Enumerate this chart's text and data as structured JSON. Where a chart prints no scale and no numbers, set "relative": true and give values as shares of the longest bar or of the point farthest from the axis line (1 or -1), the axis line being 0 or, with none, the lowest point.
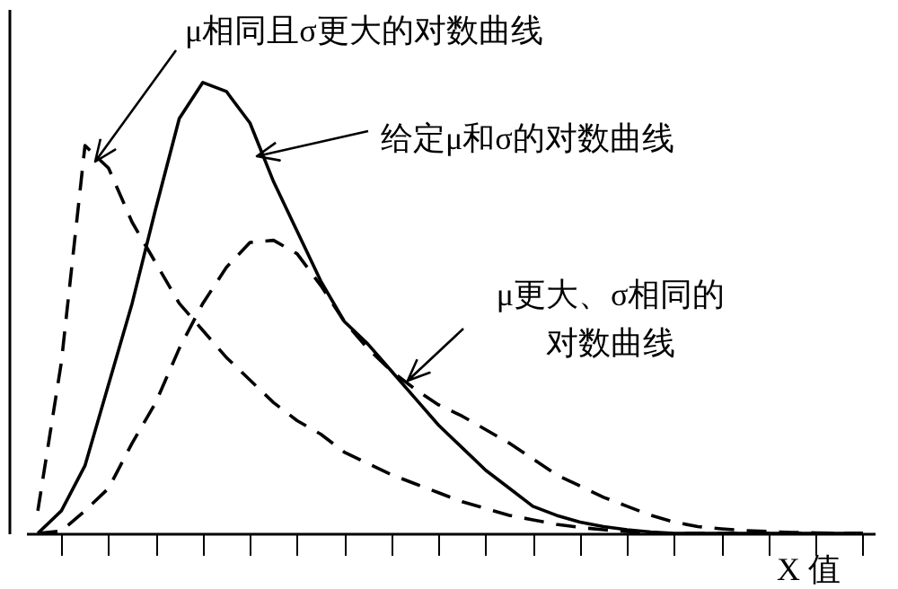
{
  "chart_data": {
    "type": "line",
    "relative": true,
    "xlabel": "X 值",
    "grid": false,
    "marker": "none",
    "categories": [
      null,
      null,
      null,
      null,
      null,
      null,
      null,
      null,
      null,
      null,
      null,
      null,
      null,
      null,
      null,
      null,
      null,
      null,
      null,
      null,
      null,
      null,
      null,
      null,
      null,
      null,
      null,
      null,
      null,
      null,
      null,
      null,
      null,
      null,
      null,
      null
    ],
    "series": [
      {
        "color": "#000000",
        "line_style": "solid",
        "values": [
          0,
          0.05,
          0.15,
          0.33,
          0.51,
          0.72,
          0.92,
          1,
          0.98,
          0.91,
          0.78,
          0.67,
          0.56,
          0.47,
          0.42,
          0.36,
          0.3,
          0.24,
          0.19,
          0.14,
          0.1,
          0.06,
          0.04,
          0.025,
          0.015,
          0.008,
          0.003,
          0,
          0,
          0,
          0,
          0,
          0,
          0,
          0,
          0
        ]
      },
      {
        "color": "#000000",
        "line_style": "dashed",
        "values": [
          0.05,
          0.38,
          0.86,
          0.81,
          0.69,
          0.6,
          0.51,
          0.45,
          0.39,
          0.34,
          0.29,
          0.25,
          0.22,
          0.18,
          0.155,
          0.13,
          0.11,
          0.09,
          0.07,
          0.055,
          0.04,
          0.03,
          0.02,
          0.013,
          0.008,
          0.004,
          0.001,
          0,
          0,
          0,
          0,
          0,
          0,
          0,
          0,
          0
        ]
      },
      {
        "color": "#000000",
        "line_style": "dashed",
        "values": [
          0,
          0.005,
          0.05,
          0.1,
          0.2,
          0.29,
          0.41,
          0.51,
          0.59,
          0.645,
          0.65,
          0.62,
          0.55,
          0.47,
          0.41,
          0.36,
          0.32,
          0.285,
          0.26,
          0.23,
          0.2,
          0.165,
          0.13,
          0.105,
          0.08,
          0.06,
          0.04,
          0.025,
          0.015,
          0.01,
          0.006,
          0.004,
          0.002,
          0.001,
          0,
          0
        ]
      }
    ],
    "annotations": [
      "μ相同且σ更大的对数曲线",
      "给定μ和σ的对数曲线",
      "μ更大、σ相同的对数曲线"
    ]
  }
}
